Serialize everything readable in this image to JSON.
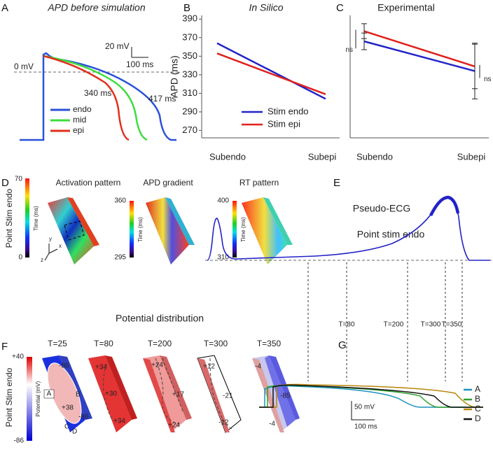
{
  "chart_data": [
    {
      "type": "line",
      "title": "In Silico",
      "y_label": "APD (ms)",
      "categories": [
        "Subendo",
        "Subepi"
      ],
      "series": [
        {
          "name": "Stim endo",
          "color": "#2323c8",
          "values": [
            364,
            304
          ]
        },
        {
          "name": "Stim epi",
          "color": "#e0201b",
          "values": [
            353,
            309
          ]
        }
      ],
      "ylim": [
        262,
        394
      ],
      "yticks": [
        270,
        290,
        310,
        330,
        350,
        370,
        390
      ]
    },
    {
      "type": "line",
      "title": "Experimental",
      "categories": [
        "Subendo",
        "Subepi"
      ],
      "series": [
        {
          "color": "#2323c8",
          "values": [
            366,
            334
          ],
          "errors": [
            9,
            30
          ]
        },
        {
          "color": "#e0201b",
          "values": [
            377,
            339
          ],
          "errors": [
            8,
            24
          ]
        }
      ],
      "ylim": [
        262,
        394
      ],
      "annotations": [
        "ns",
        "ns"
      ]
    }
  ],
  "panel_labels": [
    "A",
    "B",
    "C",
    "D",
    "E",
    "F",
    "G"
  ],
  "panel_a": {
    "title": "APD before simulation",
    "scale_v": "20 mV",
    "scale_t": "100 ms",
    "zero": "0 mV",
    "apd_labels": [
      "340 ms",
      "417 ms"
    ],
    "legend": [
      "endo",
      "mid",
      "epi"
    ]
  },
  "panel_d": {
    "row_label": "Point Stim endo",
    "axes": [
      "y",
      "x",
      "z"
    ],
    "maps": [
      {
        "title": "Activation pattern",
        "max": "70",
        "min": "0",
        "unit": "Time (ms)"
      },
      {
        "title": "APD gradient",
        "max": "360",
        "min": "295",
        "unit": "Time (ms)"
      },
      {
        "title": "RT pattern",
        "max": "400",
        "min": "310",
        "unit": "Time (ms)"
      }
    ]
  },
  "panel_e": {
    "title": "Pseudo-ECG",
    "label": "Point stim endo",
    "times": [
      "T=80",
      "T=200",
      "T=300",
      "T=350"
    ]
  },
  "panel_f": {
    "title": "Potential distribution",
    "row_label": "Point Stim endo",
    "max": "+40",
    "min": "-86",
    "unit": "Potential (mV)",
    "frames": [
      {
        "time": "T=25",
        "labels": [
          "-86",
          "A",
          "B",
          "+38",
          "C",
          "D",
          "-86"
        ]
      },
      {
        "time": "T=80",
        "labels": [
          "+34",
          "+30",
          "+34"
        ]
      },
      {
        "time": "T=200",
        "labels": [
          "+24",
          "+17",
          "+24"
        ]
      },
      {
        "time": "T=300",
        "labels": [
          "+12",
          "-21",
          "-12"
        ]
      },
      {
        "time": "T=350",
        "labels": [
          "-4",
          "-85",
          "-4"
        ]
      }
    ]
  },
  "panel_g": {
    "legend": [
      "A",
      "B",
      "C",
      "D"
    ],
    "scale_v": "50 mV",
    "scale_t": "100 ms"
  }
}
